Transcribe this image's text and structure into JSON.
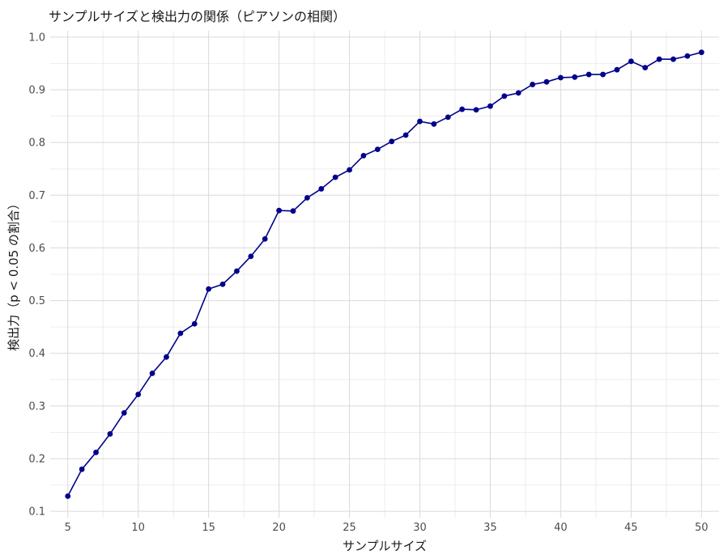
{
  "chart_data": {
    "type": "line",
    "title": "サンプルサイズと検出力の関係（ピアソンの相関）",
    "xlabel": "サンプルサイズ",
    "ylabel": "検出力（p < 0.05 の割合）",
    "x": [
      5,
      6,
      7,
      8,
      9,
      10,
      11,
      12,
      13,
      14,
      15,
      16,
      17,
      18,
      19,
      20,
      21,
      22,
      23,
      24,
      25,
      26,
      27,
      28,
      29,
      30,
      31,
      32,
      33,
      34,
      35,
      36,
      37,
      38,
      39,
      40,
      41,
      42,
      43,
      44,
      45,
      46,
      47,
      48,
      49,
      50
    ],
    "series": [
      {
        "values": [
          0.129,
          0.18,
          0.212,
          0.247,
          0.287,
          0.322,
          0.362,
          0.393,
          0.438,
          0.456,
          0.522,
          0.531,
          0.556,
          0.584,
          0.617,
          0.671,
          0.67,
          0.695,
          0.712,
          0.734,
          0.748,
          0.775,
          0.787,
          0.802,
          0.814,
          0.84,
          0.835,
          0.848,
          0.863,
          0.862,
          0.869,
          0.888,
          0.894,
          0.91,
          0.915,
          0.923,
          0.924,
          0.929,
          0.929,
          0.938,
          0.954,
          0.942,
          0.958,
          0.958,
          0.964,
          0.971
        ],
        "color": "#00008b"
      }
    ],
    "xlim": [
      3.75,
      51.25
    ],
    "ylim": [
      0.088,
      1.012
    ],
    "x_ticks": [
      5,
      10,
      15,
      20,
      25,
      30,
      35,
      40,
      45,
      50
    ],
    "y_ticks": [
      0.1,
      0.2,
      0.3,
      0.4,
      0.5,
      0.6,
      0.7,
      0.8,
      0.9,
      1.0
    ],
    "x_tick_labels": [
      "5",
      "10",
      "15",
      "20",
      "25",
      "30",
      "35",
      "40",
      "45",
      "50"
    ],
    "y_tick_labels": [
      "0.1",
      "0.2",
      "0.3",
      "0.4",
      "0.5",
      "0.6",
      "0.7",
      "0.8",
      "0.9",
      "1.0"
    ],
    "grid": true,
    "legend": "none"
  }
}
